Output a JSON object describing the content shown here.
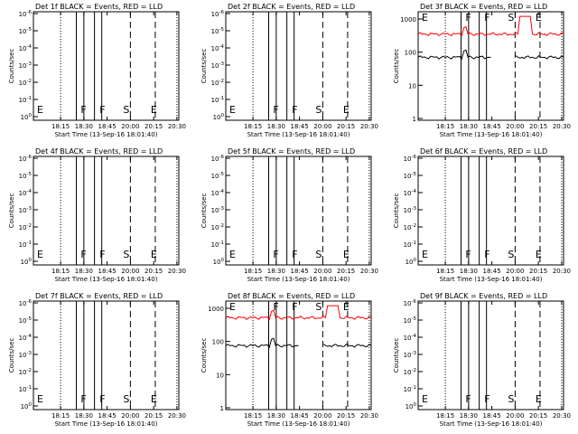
{
  "figure": {
    "start_time_label": "Start Time (13-Sep-16 18:01:40)",
    "y_axis_label": "Counts/sec",
    "x_tick_labels": [
      "18:15",
      "18:30",
      "18:45",
      "20:00",
      "20:15",
      "20:30"
    ],
    "y_tick_labels_log": [
      "10^0",
      "10^-1",
      "10^-2",
      "10^-3",
      "10^-4",
      "10^-5",
      "10^-6"
    ],
    "y_tick_labels_linear": [
      "1",
      "10",
      "100",
      "1000"
    ],
    "marker_labels": [
      "E",
      "F",
      "F",
      "S",
      "E"
    ]
  },
  "chart_data": [
    {
      "type": "line",
      "title": "Det 1f BLACK = Events, RED = LLD",
      "yscale": "empty",
      "series": []
    },
    {
      "type": "line",
      "title": "Det 2f BLACK = Events, RED = LLD",
      "yscale": "empty",
      "series": []
    },
    {
      "type": "line",
      "title": "Det 3f BLACK = Events, RED = LLD",
      "yscale": "log",
      "ylim": [
        1,
        1000
      ],
      "series": [
        {
          "color": "#ff0000",
          "approx_level": 350
        },
        {
          "color": "#000000",
          "approx_level": 70
        }
      ]
    },
    {
      "type": "line",
      "title": "Det 4f BLACK = Events, RED = LLD",
      "yscale": "empty",
      "series": []
    },
    {
      "type": "line",
      "title": "Det 5f BLACK = Events, RED = LLD",
      "yscale": "empty",
      "series": []
    },
    {
      "type": "line",
      "title": "Det 6f BLACK = Events, RED = LLD",
      "yscale": "empty",
      "series": []
    },
    {
      "type": "line",
      "title": "Det 7f BLACK = Events, RED = LLD",
      "yscale": "empty",
      "series": []
    },
    {
      "type": "line",
      "title": "Det 8f BLACK = Events, RED = LLD",
      "yscale": "log",
      "ylim": [
        1,
        1000
      ],
      "series": [
        {
          "color": "#ff0000",
          "approx_level": 520
        },
        {
          "color": "#000000",
          "approx_level": 75
        }
      ]
    },
    {
      "type": "line",
      "title": "Det 9f BLACK = Events, RED = LLD",
      "yscale": "empty",
      "series": []
    }
  ]
}
